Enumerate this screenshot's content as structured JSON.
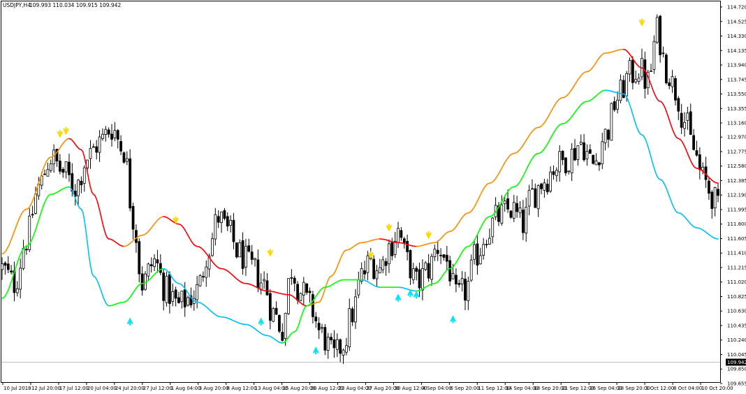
{
  "header": {
    "symbol": "USDJPY,H4",
    "ohlc": "109.993 110.034 109.915 109.942"
  },
  "colors": {
    "background": "#ffffff",
    "candle": "#000000",
    "ma_upper_up": "#ff8c00",
    "ma_upper_down": "#ff0000",
    "ma_lower_up": "#00ff00",
    "ma_lower_down": "#00bfff",
    "sell_arrow": "#ffd700",
    "buy_arrow": "#00e5ff",
    "current_price_line": "#c0c0c0",
    "price_tag_bg": "#000000"
  },
  "chart_data": {
    "type": "candlestick",
    "title": "USDJPY,H4",
    "y_ticks": [
      "114.720",
      "114.525",
      "114.330",
      "114.135",
      "113.940",
      "113.745",
      "113.550",
      "113.355",
      "113.160",
      "112.970",
      "112.775",
      "112.580",
      "112.385",
      "112.190",
      "111.995",
      "111.800",
      "111.605",
      "111.410",
      "111.215",
      "111.020",
      "110.825",
      "110.630",
      "110.435",
      "110.240",
      "110.045",
      "109.850",
      "109.655"
    ],
    "ylim": [
      109.655,
      114.72
    ],
    "x_ticks": [
      "10 Jul 2018",
      "12 Jul 20:00",
      "17 Jul 12:00",
      "20 Jul 04:00",
      "24 Jul 20:00",
      "27 Jul 12:00",
      "1 Aug 04:00",
      "3 Aug 20:00",
      "8 Aug 12:00",
      "13 Aug 04:00",
      "15 Aug 20:00",
      "20 Aug 12:00",
      "23 Aug 04:00",
      "27 Aug 20:00",
      "30 Aug 12:00",
      "4 Sep 04:00",
      "6 Sep 20:00",
      "11 Sep 12:00",
      "14 Sep 04:00",
      "18 Sep 20:00",
      "21 Sep 12:00",
      "26 Sep 04:00",
      "28 Sep 20:00",
      "3 Oct 12:00",
      "8 Oct 04:00",
      "10 Oct 20:00"
    ],
    "current_price": 109.942,
    "current_price_label": "109.942",
    "close_path": [
      [
        0,
        111.2
      ],
      [
        4,
        111.0
      ],
      [
        8,
        111.6
      ],
      [
        12,
        112.3
      ],
      [
        16,
        112.7
      ],
      [
        20,
        112.5
      ],
      [
        24,
        112.3
      ],
      [
        28,
        112.7
      ],
      [
        32,
        112.9
      ],
      [
        36,
        113.1
      ],
      [
        40,
        112.8
      ],
      [
        43,
        111.9
      ],
      [
        46,
        111.0
      ],
      [
        50,
        111.3
      ],
      [
        54,
        110.9
      ],
      [
        58,
        110.7
      ],
      [
        61,
        110.8
      ],
      [
        64,
        110.9
      ],
      [
        68,
        111.5
      ],
      [
        71,
        111.9
      ],
      [
        74,
        111.7
      ],
      [
        78,
        111.4
      ],
      [
        82,
        111.2
      ],
      [
        86,
        111.0
      ],
      [
        89,
        110.6
      ],
      [
        92,
        110.4
      ],
      [
        95,
        111.2
      ],
      [
        98,
        110.9
      ],
      [
        101,
        110.7
      ],
      [
        105,
        110.3
      ],
      [
        109,
        110.0
      ],
      [
        112,
        110.2
      ],
      [
        115,
        110.6
      ],
      [
        118,
        111.1
      ],
      [
        121,
        111.3
      ],
      [
        124,
        111.2
      ],
      [
        127,
        111.5
      ],
      [
        130,
        111.7
      ],
      [
        133,
        111.3
      ],
      [
        136,
        111.0
      ],
      [
        140,
        111.2
      ],
      [
        143,
        111.5
      ],
      [
        146,
        111.3
      ],
      [
        149,
        110.8
      ],
      [
        152,
        110.9
      ],
      [
        156,
        111.4
      ],
      [
        159,
        111.7
      ],
      [
        163,
        111.9
      ],
      [
        167,
        112.0
      ],
      [
        171,
        111.8
      ],
      [
        174,
        112.2
      ],
      [
        178,
        112.4
      ],
      [
        182,
        112.6
      ],
      [
        186,
        112.7
      ],
      [
        190,
        112.9
      ],
      [
        194,
        112.6
      ],
      [
        198,
        113.0
      ],
      [
        202,
        113.5
      ],
      [
        206,
        113.8
      ],
      [
        209,
        113.9
      ],
      [
        212,
        113.7
      ],
      [
        215,
        114.4
      ],
      [
        218,
        113.9
      ],
      [
        221,
        113.6
      ],
      [
        224,
        113.2
      ],
      [
        227,
        112.8
      ],
      [
        230,
        112.4
      ],
      [
        233,
        112.2
      ],
      [
        235,
        112.0
      ]
    ],
    "ma_upper": [
      [
        0,
        111.4
      ],
      [
        8,
        112.0
      ],
      [
        16,
        112.7
      ],
      [
        22,
        112.95
      ],
      [
        26,
        112.8
      ],
      [
        30,
        112.2
      ],
      [
        35,
        111.6
      ],
      [
        40,
        111.5
      ],
      [
        46,
        111.65
      ],
      [
        53,
        111.9
      ],
      [
        58,
        111.8
      ],
      [
        64,
        111.5
      ],
      [
        72,
        111.2
      ],
      [
        80,
        111.0
      ],
      [
        87,
        110.9
      ],
      [
        94,
        110.85
      ],
      [
        100,
        110.7
      ],
      [
        104,
        110.75
      ],
      [
        108,
        111.1
      ],
      [
        113,
        111.45
      ],
      [
        118,
        111.55
      ],
      [
        124,
        111.6
      ],
      [
        130,
        111.55
      ],
      [
        136,
        111.5
      ],
      [
        142,
        111.55
      ],
      [
        147,
        111.7
      ],
      [
        153,
        111.95
      ],
      [
        160,
        112.35
      ],
      [
        168,
        112.75
      ],
      [
        176,
        113.1
      ],
      [
        184,
        113.5
      ],
      [
        192,
        113.85
      ],
      [
        198,
        114.1
      ],
      [
        204,
        114.15
      ],
      [
        210,
        113.9
      ],
      [
        216,
        113.45
      ],
      [
        222,
        112.95
      ],
      [
        228,
        112.55
      ],
      [
        235,
        112.35
      ]
    ],
    "ma_lower": [
      [
        0,
        110.8
      ],
      [
        8,
        111.5
      ],
      [
        16,
        112.2
      ],
      [
        22,
        112.3
      ],
      [
        26,
        112.0
      ],
      [
        30,
        111.1
      ],
      [
        35,
        110.7
      ],
      [
        40,
        110.75
      ],
      [
        46,
        111.0
      ],
      [
        53,
        111.2
      ],
      [
        58,
        111.0
      ],
      [
        64,
        110.75
      ],
      [
        72,
        110.55
      ],
      [
        80,
        110.45
      ],
      [
        87,
        110.3
      ],
      [
        92,
        110.2
      ],
      [
        96,
        110.35
      ],
      [
        100,
        110.7
      ],
      [
        106,
        110.95
      ],
      [
        112,
        111.05
      ],
      [
        118,
        111.05
      ],
      [
        124,
        110.95
      ],
      [
        130,
        110.95
      ],
      [
        136,
        110.9
      ],
      [
        142,
        111.0
      ],
      [
        147,
        111.2
      ],
      [
        153,
        111.5
      ],
      [
        160,
        111.9
      ],
      [
        168,
        112.3
      ],
      [
        176,
        112.75
      ],
      [
        184,
        113.15
      ],
      [
        192,
        113.45
      ],
      [
        198,
        113.6
      ],
      [
        204,
        113.55
      ],
      [
        210,
        113.0
      ],
      [
        216,
        112.4
      ],
      [
        222,
        111.95
      ],
      [
        228,
        111.75
      ],
      [
        235,
        111.6
      ]
    ],
    "sell_arrows": [
      [
        19,
        112.98
      ],
      [
        21,
        113.02
      ],
      [
        57,
        111.82
      ],
      [
        88,
        111.38
      ],
      [
        121,
        111.35
      ],
      [
        127,
        111.72
      ],
      [
        140,
        111.62
      ],
      [
        210,
        114.48
      ]
    ],
    "buy_arrows": [
      [
        42,
        110.52
      ],
      [
        85,
        110.52
      ],
      [
        103,
        110.13
      ],
      [
        130,
        110.84
      ],
      [
        134,
        110.9
      ],
      [
        136,
        110.88
      ],
      [
        148,
        110.55
      ]
    ]
  }
}
